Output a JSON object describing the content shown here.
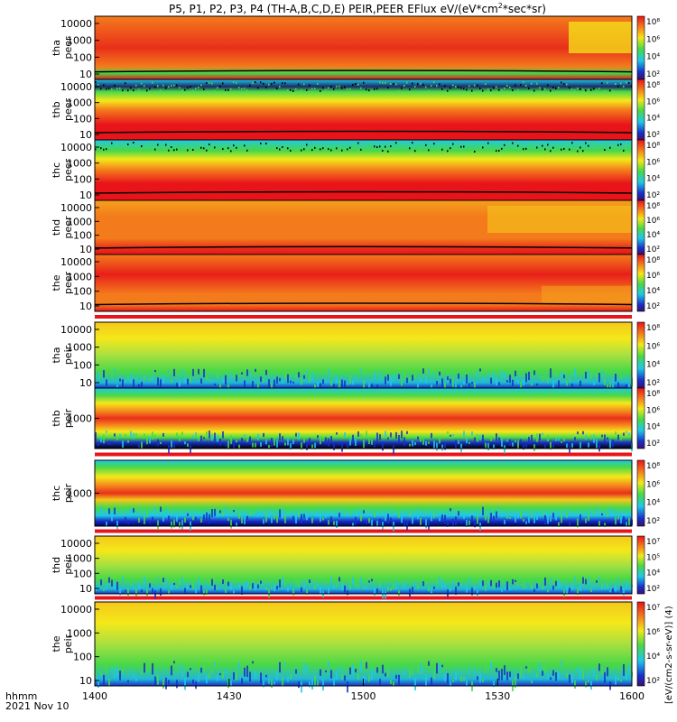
{
  "title": "P5, P1, P2, P3, P4 (TH-A,B,C,D,E) PEIR,PEER EFlux eV/(eV*cm",
  "title_sup": "2",
  "title_tail": "*sec*sr)",
  "xaxis": {
    "label_line1": "hhmm",
    "label_line2": "2021 Nov 10",
    "ticks": [
      "1400",
      "1430",
      "1500",
      "1530",
      "1600"
    ]
  },
  "colorbar_label": "[eV/(cm2-s-sr-eV)] (4)",
  "chart_data": {
    "type": "heatmap",
    "x_range": [
      "1400",
      "1600"
    ],
    "panels": [
      {
        "label_line1": "tha",
        "label_line2": "peer",
        "yticks": [
          "10000",
          "1000",
          "100",
          "10"
        ],
        "cbar_ticks": [
          "10⁸",
          "10⁶",
          "10⁴",
          "10²"
        ]
      },
      {
        "label_line1": "thb",
        "label_line2": "peer",
        "yticks": [
          "10000",
          "1000",
          "100",
          "10"
        ],
        "cbar_ticks": [
          "10⁸",
          "10⁶",
          "10⁴",
          "10²"
        ]
      },
      {
        "label_line1": "thc",
        "label_line2": "peer",
        "yticks": [
          "10000",
          "1000",
          "100",
          "10"
        ],
        "cbar_ticks": [
          "10⁸",
          "10⁶",
          "10⁴",
          "10²"
        ]
      },
      {
        "label_line1": "thd",
        "label_line2": "peer",
        "yticks": [
          "10000",
          "1000",
          "100",
          "10"
        ],
        "cbar_ticks": [
          "10⁸",
          "10⁶",
          "10⁴",
          "10²"
        ]
      },
      {
        "label_line1": "the",
        "label_line2": "peer",
        "yticks": [
          "10000",
          "1000",
          "100",
          "10"
        ],
        "cbar_ticks": [
          "10⁸",
          "10⁶",
          "10⁴",
          "10²"
        ]
      },
      {
        "label_line1": "tha",
        "label_line2": "peir",
        "yticks": [
          "10000",
          "1000",
          "100",
          "10"
        ],
        "cbar_ticks": [
          "10⁸",
          "10⁶",
          "10⁴",
          "10²"
        ]
      },
      {
        "label_line1": "thb",
        "label_line2": "peir",
        "yticks": [
          "1000"
        ],
        "cbar_ticks": [
          "10⁸",
          "10⁶",
          "10⁴",
          "10²"
        ]
      },
      {
        "label_line1": "thc",
        "label_line2": "peir",
        "yticks": [
          "1000"
        ],
        "cbar_ticks": [
          "10⁸",
          "10⁶",
          "10⁴",
          "10²"
        ]
      },
      {
        "label_line1": "thd",
        "label_line2": "peir",
        "yticks": [
          "10000",
          "1000",
          "100",
          "10"
        ],
        "cbar_ticks": [
          "10⁷",
          "10⁵",
          "10⁴",
          "10²"
        ]
      },
      {
        "label_line1": "the",
        "label_line2": "peir",
        "yticks": [
          "10000",
          "1000",
          "100",
          "10"
        ],
        "cbar_ticks": [
          "10⁷",
          "10⁶",
          "10⁴",
          "10²"
        ]
      }
    ]
  },
  "colors": {
    "red": "#e8141a",
    "orange": "#f47b1c",
    "yellow": "#f4e81a",
    "green": "#48d848",
    "cyan": "#20c8e8",
    "blue": "#1830c8",
    "black": "#000000"
  }
}
